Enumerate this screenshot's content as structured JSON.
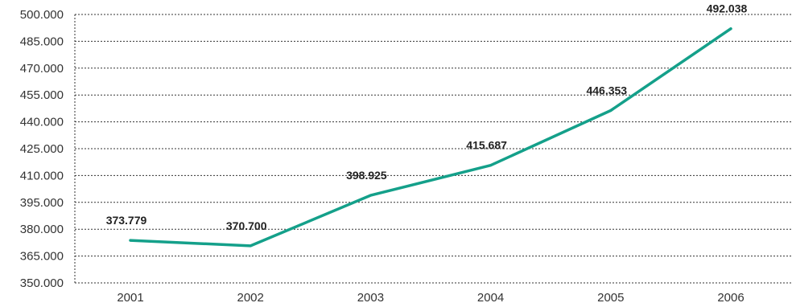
{
  "chart_data": {
    "type": "line",
    "title": "",
    "xlabel": "",
    "ylabel": "",
    "x": [
      "2001",
      "2002",
      "2003",
      "2004",
      "2005",
      "2006"
    ],
    "series": [
      {
        "values": [
          373779,
          370700,
          398925,
          415687,
          446353,
          492038
        ],
        "labels": [
          "373.779",
          "370.700",
          "398.925",
          "415.687",
          "446.353",
          "492.038"
        ],
        "color": "#14a08a"
      }
    ],
    "ylim": [
      350000,
      500000
    ],
    "yticks": [
      350000,
      365000,
      380000,
      395000,
      410000,
      425000,
      440000,
      455000,
      470000,
      485000,
      500000
    ],
    "ytick_labels": [
      "350.000",
      "365.000",
      "380.000",
      "395.000",
      "410.000",
      "425.000",
      "440.000",
      "455.000",
      "470.000",
      "485.000",
      "500.000"
    ],
    "grid": true,
    "legend": "none"
  }
}
